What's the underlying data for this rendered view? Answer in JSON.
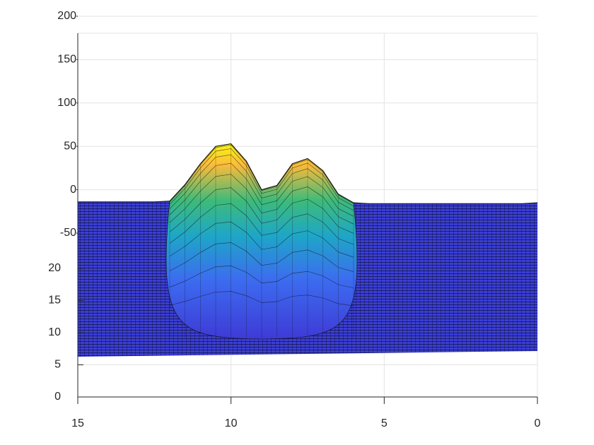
{
  "chart_data": {
    "type": "surface",
    "x": [
      15,
      14.5,
      14,
      13.5,
      13,
      12.5,
      12,
      11.5,
      11,
      10.5,
      10,
      9.5,
      9,
      8.5,
      8,
      7.5,
      7,
      6.5,
      6,
      5.5,
      5,
      4.5,
      4,
      3.5,
      3,
      2.5,
      2,
      1.5,
      1,
      0.5,
      0
    ],
    "values": [
      -14,
      -14,
      -14,
      -14,
      -14,
      -14,
      -13,
      6,
      30,
      50,
      53,
      33,
      0,
      5,
      30,
      36,
      22,
      -5,
      -15,
      -16,
      -16,
      -16,
      -16,
      -16,
      -16,
      -16,
      -16,
      -16,
      -16,
      -16,
      -15
    ],
    "xlim": [
      15,
      0
    ],
    "xticks": [
      15,
      10,
      5,
      0
    ],
    "ylim": [
      0,
      20
    ],
    "yticks": [
      0,
      5,
      10,
      15,
      20
    ],
    "y2lim": [
      -50,
      200
    ],
    "y2ticks": [
      -50,
      0,
      50,
      100,
      150,
      200
    ],
    "grid": true,
    "color": "#3b3fd6"
  }
}
